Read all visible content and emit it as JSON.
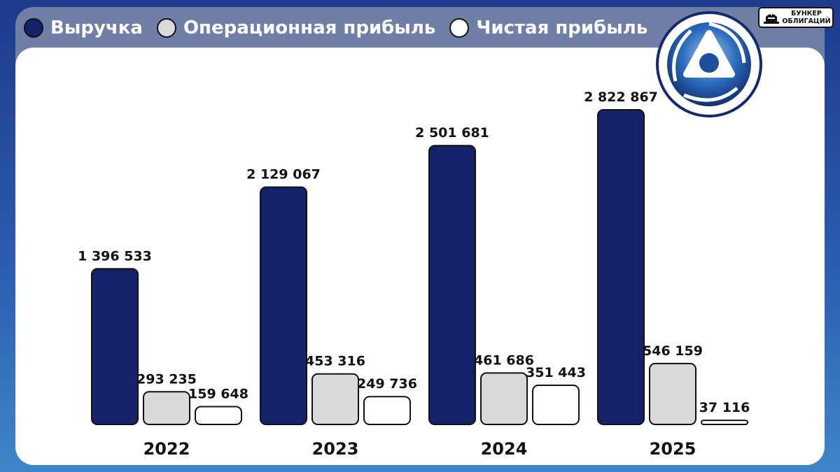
{
  "brand": {
    "line1": "БУНКЕР",
    "line2": "ОБЛИГАЦИЙ"
  },
  "logo": {
    "icon": "rosatom-emblem-icon"
  },
  "colors": {
    "revenue": "#14226a",
    "operating_profit": "#dadada",
    "net_profit": "#ffffff"
  },
  "chart_data": {
    "type": "bar",
    "categories": [
      "2022",
      "2023",
      "2024",
      "2025"
    ],
    "series": [
      {
        "name": "Выручка",
        "values": [
          1396533,
          2129067,
          2501681,
          2822867
        ],
        "labels": [
          "1 396 533",
          "2 129 067",
          "2 501 681",
          "2 822 867"
        ]
      },
      {
        "name": "Операционная прибыль",
        "values": [
          293235,
          453316,
          461686,
          546159
        ],
        "labels": [
          "293 235",
          "453 316",
          "461 686",
          "546 159"
        ]
      },
      {
        "name": "Чистая прибыль",
        "values": [
          159648,
          249736,
          351443,
          37116
        ],
        "labels": [
          "159 648",
          "249 736",
          "351 443",
          "37 116"
        ]
      }
    ],
    "title": "",
    "xlabel": "",
    "ylabel": "",
    "ylim": [
      0,
      2822867
    ],
    "grid": false,
    "legend": "top-left"
  }
}
